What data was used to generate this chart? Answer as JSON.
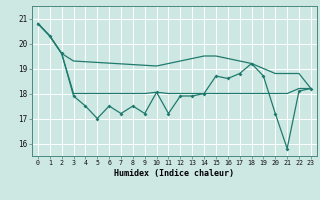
{
  "xlabel": "Humidex (Indice chaleur)",
  "bg_color": "#cde8e3",
  "line_color": "#1f7a6e",
  "grid_color": "#ffffff",
  "xmin": -0.5,
  "xmax": 23.5,
  "ymin": 15.5,
  "ymax": 21.5,
  "yticks": [
    16,
    17,
    18,
    19,
    20,
    21
  ],
  "xticks": [
    0,
    1,
    2,
    3,
    4,
    5,
    6,
    7,
    8,
    9,
    10,
    11,
    12,
    13,
    14,
    15,
    16,
    17,
    18,
    19,
    20,
    21,
    22,
    23
  ],
  "line1_x": [
    0,
    1,
    2,
    3,
    4,
    5,
    6,
    7,
    8,
    9,
    10,
    11,
    12,
    13,
    14,
    15,
    16,
    17,
    18,
    19,
    20,
    21,
    22,
    23
  ],
  "line1_y": [
    20.8,
    20.3,
    19.6,
    17.9,
    17.5,
    17.0,
    17.5,
    17.2,
    17.5,
    17.2,
    18.05,
    17.2,
    17.9,
    17.9,
    18.0,
    18.7,
    18.6,
    18.8,
    19.2,
    18.7,
    17.2,
    15.8,
    18.1,
    18.2
  ],
  "line2_x": [
    0,
    1,
    2,
    3,
    4,
    5,
    6,
    7,
    8,
    9,
    10,
    11,
    12,
    13,
    14,
    15,
    16,
    17,
    18,
    19,
    20,
    21,
    22,
    23
  ],
  "line2_y": [
    20.8,
    20.3,
    19.6,
    18.0,
    18.0,
    18.0,
    18.0,
    18.0,
    18.0,
    18.0,
    18.05,
    18.0,
    18.0,
    18.0,
    18.0,
    18.0,
    18.0,
    18.0,
    18.0,
    18.0,
    18.0,
    18.0,
    18.2,
    18.2
  ],
  "line3_x": [
    0,
    1,
    2,
    3,
    10,
    14,
    15,
    16,
    17,
    18,
    19,
    20,
    21,
    22,
    23
  ],
  "line3_y": [
    20.8,
    20.3,
    19.6,
    19.3,
    19.1,
    19.5,
    19.5,
    19.4,
    19.3,
    19.2,
    19.0,
    18.8,
    18.8,
    18.8,
    18.2
  ]
}
